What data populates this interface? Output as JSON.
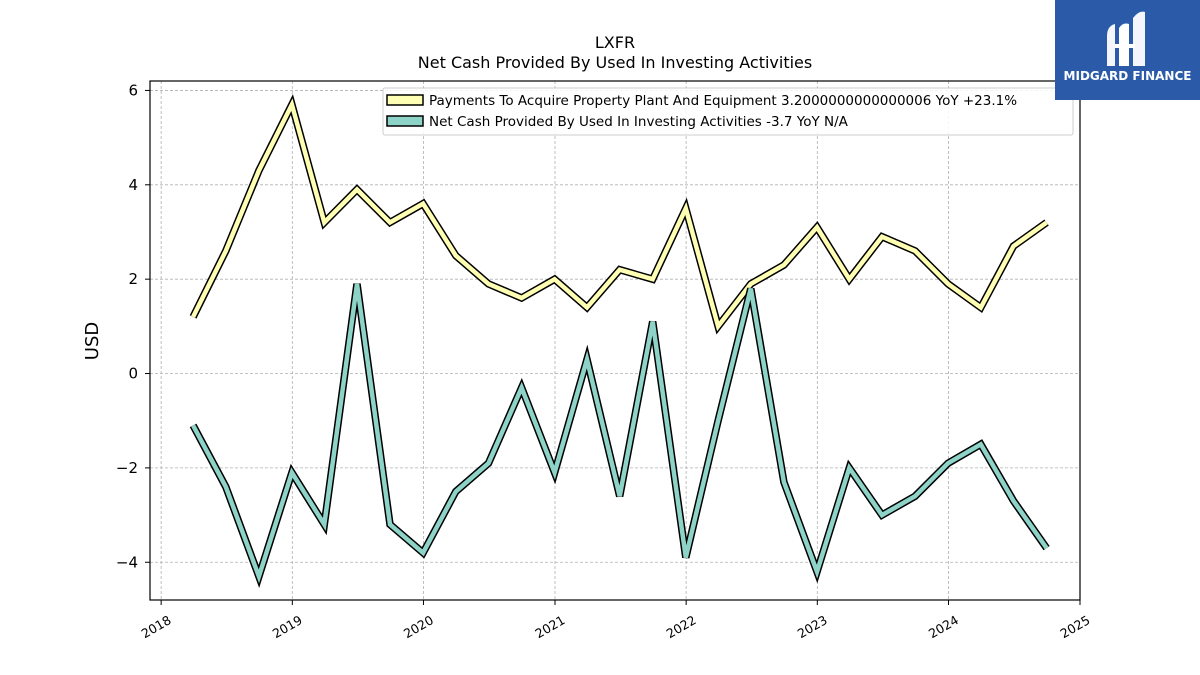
{
  "brand": {
    "name": "MIDGARD FINANCE",
    "color": "#2a5aa8"
  },
  "chart_data": {
    "type": "line",
    "title": "LXFR",
    "subtitle": "Net Cash Provided By Used In Investing Activities",
    "ylabel": "USD",
    "xlabel": "",
    "ylim": [
      -4.8,
      6.2
    ],
    "yticks": [
      -4,
      -2,
      0,
      2,
      4,
      6
    ],
    "ytick_labels": [
      "−4",
      "−2",
      "0",
      "2",
      "4",
      "6"
    ],
    "xlim": [
      "2017-12-01",
      "2025-01-01"
    ],
    "xticks": [
      "2018-01-01",
      "2019-01-01",
      "2020-01-01",
      "2021-01-01",
      "2022-01-01",
      "2023-01-01",
      "2024-01-01",
      "2025-01-01"
    ],
    "xtick_labels": [
      "2018",
      "2019",
      "2020",
      "2021",
      "2022",
      "2023",
      "2024",
      "2025"
    ],
    "grid": true,
    "legend_position": "top-right",
    "x": [
      "2018-03-31",
      "2018-06-30",
      "2018-09-30",
      "2018-12-31",
      "2019-03-31",
      "2019-06-30",
      "2019-09-30",
      "2019-12-31",
      "2020-03-31",
      "2020-06-30",
      "2020-09-30",
      "2020-12-31",
      "2021-03-31",
      "2021-06-30",
      "2021-09-30",
      "2021-12-31",
      "2022-03-31",
      "2022-06-30",
      "2022-09-30",
      "2022-12-31",
      "2023-03-31",
      "2023-06-30",
      "2023-09-30",
      "2023-12-31",
      "2024-03-31",
      "2024-06-30",
      "2024-09-30"
    ],
    "series": [
      {
        "name": "Payments To Acquire Property Plant And Equipment  3.2000000000000006 YoY +23.1%",
        "color": "#ffffb3",
        "values": [
          1.2,
          2.6,
          4.3,
          5.7,
          3.2,
          3.9,
          3.2,
          3.6,
          2.5,
          1.9,
          1.6,
          2.0,
          1.4,
          2.2,
          2.0,
          3.5,
          1.0,
          1.9,
          2.3,
          3.1,
          2.0,
          2.9,
          2.6,
          1.9,
          1.4,
          2.7,
          3.2
        ]
      },
      {
        "name": "Net Cash Provided By Used In Investing Activities  -3.7 YoY N/A",
        "color": "#8dd3c7",
        "values": [
          -1.1,
          -2.4,
          -4.3,
          -2.1,
          -3.2,
          1.9,
          -3.2,
          -3.8,
          -2.5,
          -1.9,
          -0.3,
          -2.1,
          0.3,
          -2.6,
          1.1,
          -3.9,
          -1.0,
          1.8,
          -2.3,
          -4.2,
          -2.0,
          -3.0,
          -2.6,
          -1.9,
          -1.5,
          -2.7,
          -3.7
        ]
      }
    ]
  }
}
